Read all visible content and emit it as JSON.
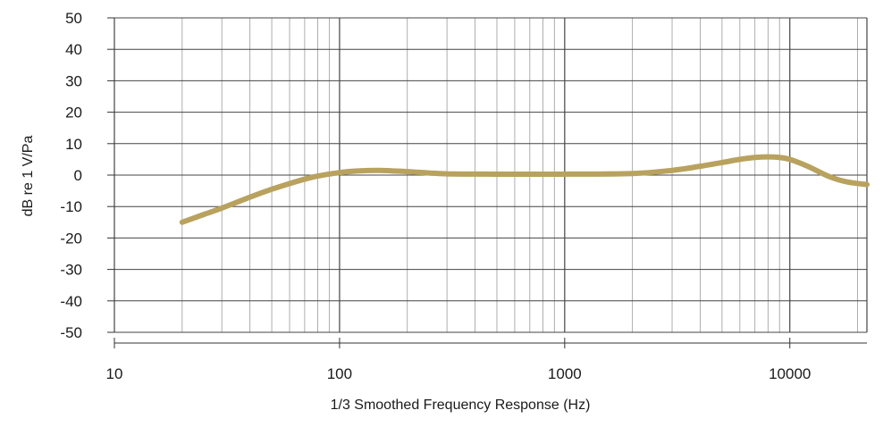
{
  "chart_data": {
    "type": "line",
    "title": "",
    "xlabel": "1/3 Smoothed Frequency Response (Hz)",
    "ylabel": "dB re 1 V/Pa",
    "x_scale": "log",
    "xlim": [
      10,
      22000
    ],
    "ylim": [
      -50,
      50
    ],
    "x_ticks": [
      10,
      100,
      1000,
      10000
    ],
    "x_tick_labels": [
      "10",
      "100",
      "1000",
      "10000"
    ],
    "y_ticks": [
      50,
      40,
      30,
      20,
      10,
      0,
      -10,
      -20,
      -30,
      -40,
      -50
    ],
    "y_tick_labels": [
      "50",
      "40",
      "30",
      "20",
      "10",
      "0",
      "-10",
      "-20",
      "-30",
      "-40",
      "-50"
    ],
    "grid": true,
    "legend": "none",
    "line_color": "#b8a25e",
    "series": [
      {
        "x": [
          20,
          25,
          30,
          40,
          50,
          60,
          70,
          80,
          100,
          120,
          150,
          200,
          300,
          500,
          1000,
          2000,
          3000,
          4000,
          5000,
          6000,
          7000,
          8000,
          9000,
          10000,
          12000,
          15000,
          18000,
          22000
        ],
        "y": [
          -15,
          -12.5,
          -10.5,
          -7,
          -4.5,
          -2.7,
          -1.3,
          -0.3,
          0.8,
          1.3,
          1.5,
          1.1,
          0.4,
          0.3,
          0.3,
          0.5,
          1.5,
          2.8,
          4,
          5,
          5.6,
          5.8,
          5.6,
          5,
          2.8,
          -0.5,
          -2.2,
          -3
        ]
      }
    ]
  }
}
